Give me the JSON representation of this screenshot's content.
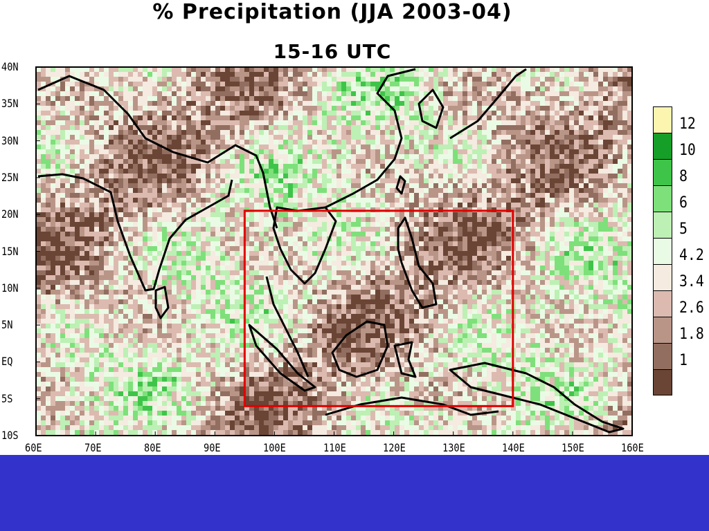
{
  "title": "% Precipitation (JJA 2003-04)",
  "subtitle": "15-16 UTC",
  "map": {
    "type": "heatmap",
    "region": {
      "lon_range": [
        60,
        160
      ],
      "lat_range": [
        -10,
        40
      ]
    },
    "highlight_box": {
      "lon": [
        95,
        140
      ],
      "lat": [
        -6,
        20.5
      ],
      "color": "#e00000"
    },
    "x_ticks": [
      "60E",
      "70E",
      "80E",
      "90E",
      "100E",
      "110E",
      "120E",
      "130E",
      "140E",
      "150E",
      "160E"
    ],
    "y_ticks": [
      "40N",
      "35N",
      "30N",
      "25N",
      "20N",
      "15N",
      "10N",
      "5N",
      "EQ",
      "5S",
      "10S"
    ]
  },
  "legend": {
    "labels": [
      "12",
      "10",
      "8",
      "6",
      "5",
      "4.2",
      "3.4",
      "2.6",
      "1.8",
      "1"
    ],
    "colors": [
      "#fbf5b0",
      "#159f28",
      "#3fc44a",
      "#7ee07a",
      "#bdf0b4",
      "#eafbe5",
      "#f5ebe0",
      "#dcbab0",
      "#b99588",
      "#926e60",
      "#6a4535"
    ]
  },
  "palette": {
    "ocean_base": "#f3e6dc",
    "land_dark": "#7a5040",
    "frame": "#000000",
    "footer": "#3333CC"
  }
}
